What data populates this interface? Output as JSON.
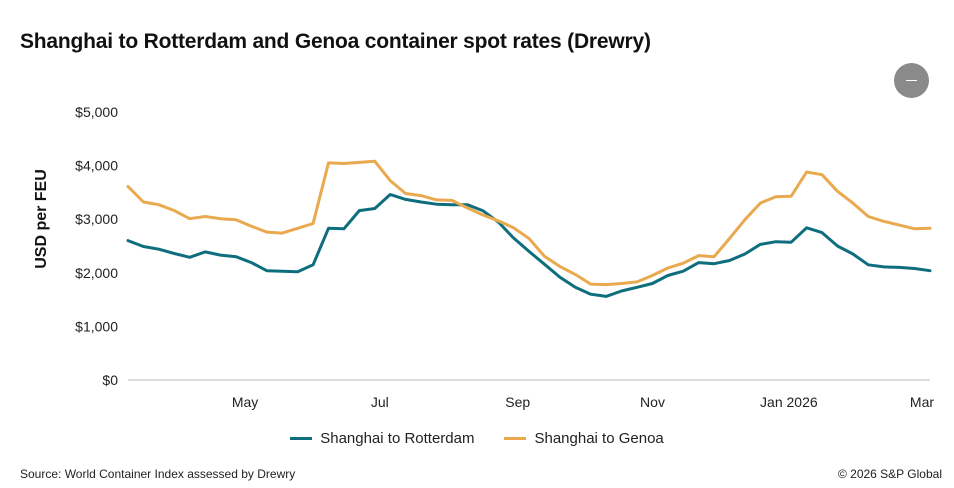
{
  "header": {
    "title": "Shanghai to Rotterdam and Genoa container spot rates (Drewry)"
  },
  "menu": {
    "icon": "minus-icon"
  },
  "footer": {
    "source": "Source: World Container Index assessed by Drewry",
    "copyright": "© 2026 S&P Global"
  },
  "colors": {
    "rotterdam": "#0e6e7e",
    "genoa": "#e9a94e"
  },
  "chart_data": {
    "type": "line",
    "title": "Shanghai to Rotterdam and Genoa container spot rates (Drewry)",
    "ylabel": "USD per FEU",
    "xlabel": "",
    "ylim": [
      0,
      5000
    ],
    "yticks": [
      0,
      1000,
      2000,
      3000,
      4000,
      5000
    ],
    "ytick_labels": [
      "$0",
      "$1,000",
      "$2,000",
      "$3,000",
      "$4,000",
      "$5,000"
    ],
    "xlim": [
      0,
      50
    ],
    "xticks": [
      {
        "label": "May",
        "x": 7.3
      },
      {
        "label": "Jul",
        "x": 15.7
      },
      {
        "label": "Sep",
        "x": 24.3
      },
      {
        "label": "Nov",
        "x": 32.7
      },
      {
        "label": "Jan 2026",
        "x": 41.2
      },
      {
        "label": "Mar",
        "x": 49.5
      }
    ],
    "legend_position": "bottom-center",
    "series": [
      {
        "name": "Shanghai to Rotterdam",
        "color": "#0e6e7e",
        "values": [
          2600,
          2490,
          2440,
          2360,
          2290,
          2390,
          2330,
          2300,
          2190,
          2040,
          2030,
          2020,
          2150,
          2830,
          2820,
          3160,
          3200,
          3460,
          3370,
          3320,
          3280,
          3270,
          3270,
          3160,
          2950,
          2650,
          2400,
          2160,
          1920,
          1730,
          1600,
          1560,
          1660,
          1730,
          1800,
          1950,
          2030,
          2190,
          2170,
          2230,
          2350,
          2530,
          2580,
          2570,
          2840,
          2750,
          2500,
          2350,
          2150,
          2110,
          2100,
          2080,
          2040
        ]
      },
      {
        "name": "Shanghai to Genoa",
        "color": "#e9a94e",
        "values": [
          3610,
          3320,
          3270,
          3160,
          3010,
          3050,
          3010,
          2990,
          2870,
          2760,
          2740,
          2830,
          2920,
          4050,
          4040,
          4060,
          4080,
          3720,
          3480,
          3440,
          3360,
          3350,
          3210,
          3080,
          2970,
          2840,
          2640,
          2310,
          2120,
          1970,
          1790,
          1780,
          1800,
          1830,
          1950,
          2090,
          2180,
          2320,
          2300,
          2640,
          2990,
          3300,
          3420,
          3430,
          3880,
          3830,
          3520,
          3300,
          3050,
          2960,
          2890,
          2820,
          2830
        ]
      }
    ]
  }
}
